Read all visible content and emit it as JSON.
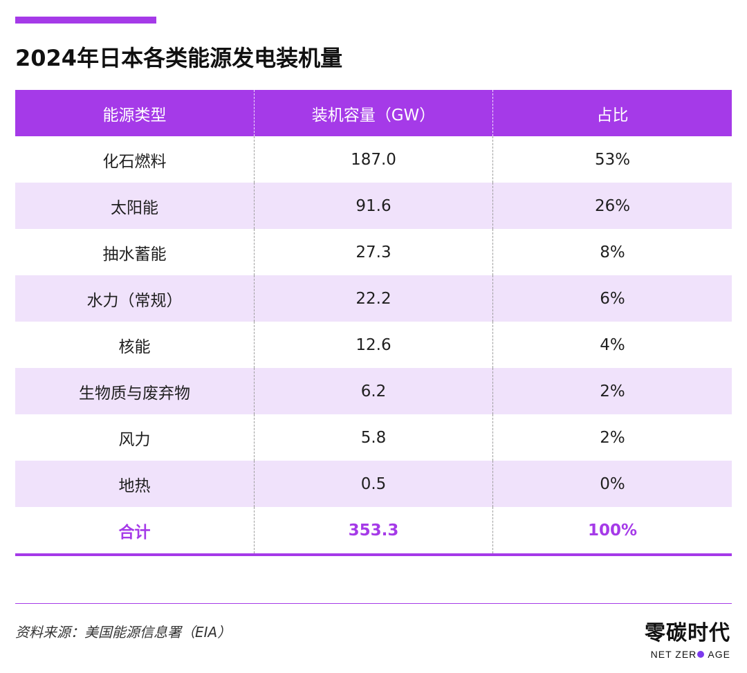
{
  "title": "2024年日本各类能源发电装机量",
  "colors": {
    "accent": "#a53ae8",
    "row_shade": "#f0e2fb"
  },
  "table": {
    "headers": [
      "能源类型",
      "装机容量（GW）",
      "占比"
    ],
    "rows": [
      [
        "化石燃料",
        "187.0",
        "53%"
      ],
      [
        "太阳能",
        "91.6",
        "26%"
      ],
      [
        "抽水蓄能",
        "27.3",
        "8%"
      ],
      [
        "水力（常规）",
        "22.2",
        "6%"
      ],
      [
        "核能",
        "12.6",
        "4%"
      ],
      [
        "生物质与废弃物",
        "6.2",
        "2%"
      ],
      [
        "风力",
        "5.8",
        "2%"
      ],
      [
        "地热",
        "0.5",
        "0%"
      ]
    ],
    "total": [
      "合计",
      "353.3",
      "100%"
    ]
  },
  "chart_data": {
    "type": "table",
    "title": "2024年日本各类能源发电装机量",
    "columns": [
      "能源类型",
      "装机容量（GW）",
      "占比"
    ],
    "rows": [
      {
        "能源类型": "化石燃料",
        "装机容量（GW）": 187.0,
        "占比": "53%"
      },
      {
        "能源类型": "太阳能",
        "装机容量（GW）": 91.6,
        "占比": "26%"
      },
      {
        "能源类型": "抽水蓄能",
        "装机容量（GW）": 27.3,
        "占比": "8%"
      },
      {
        "能源类型": "水力（常规）",
        "装机容量（GW）": 22.2,
        "占比": "6%"
      },
      {
        "能源类型": "核能",
        "装机容量（GW）": 12.6,
        "占比": "4%"
      },
      {
        "能源类型": "生物质与废弃物",
        "装机容量（GW）": 6.2,
        "占比": "2%"
      },
      {
        "能源类型": "风力",
        "装机容量（GW）": 5.8,
        "占比": "2%"
      },
      {
        "能源类型": "地热",
        "装机容量（GW）": 0.5,
        "占比": "0%"
      }
    ],
    "total": {
      "能源类型": "合计",
      "装机容量（GW）": 353.3,
      "占比": "100%"
    }
  },
  "source": "资料来源：美国能源信息署（EIA）",
  "logo": {
    "cn": "零碳时代",
    "en_part1": "NET ZER",
    "en_part2": "AGE"
  }
}
